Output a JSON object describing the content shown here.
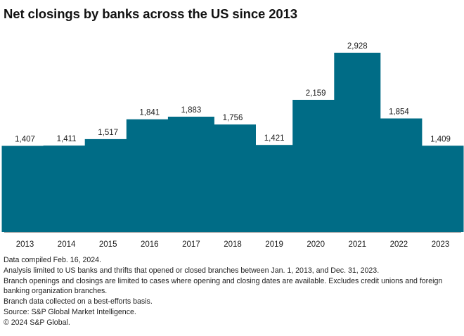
{
  "title": "Net closings by banks across the US since 2013",
  "accent_color": "#006c86",
  "chart_data": {
    "type": "bar",
    "title": "Net closings by banks across the US since 2013",
    "categories": [
      "2013",
      "2014",
      "2015",
      "2016",
      "2017",
      "2018",
      "2019",
      "2020",
      "2021",
      "2022",
      "2023"
    ],
    "values": [
      1407,
      1411,
      1517,
      1841,
      1883,
      1756,
      1421,
      2159,
      2928,
      1854,
      1409
    ],
    "value_labels": [
      "1,407",
      "1,411",
      "1,517",
      "1,841",
      "1,883",
      "1,756",
      "1,421",
      "2,159",
      "2,928",
      "1,854",
      "1,409"
    ],
    "xlabel": "",
    "ylabel": "",
    "ylim": [
      0,
      2928
    ],
    "grid": false,
    "legend": "none"
  },
  "notes": [
    "Data compiled Feb. 16, 2024.",
    "Analysis limited to US banks and thrifts that opened or closed branches between Jan. 1, 2013, and Dec. 31, 2023.",
    "Branch openings and closings are limited to cases where opening and closing dates are available. Excludes credit unions and foreign banking organization branches.",
    "Branch data collected on a best-efforts basis.",
    "Source: S&P Global Market Intelligence.",
    "© 2024 S&P Global."
  ]
}
